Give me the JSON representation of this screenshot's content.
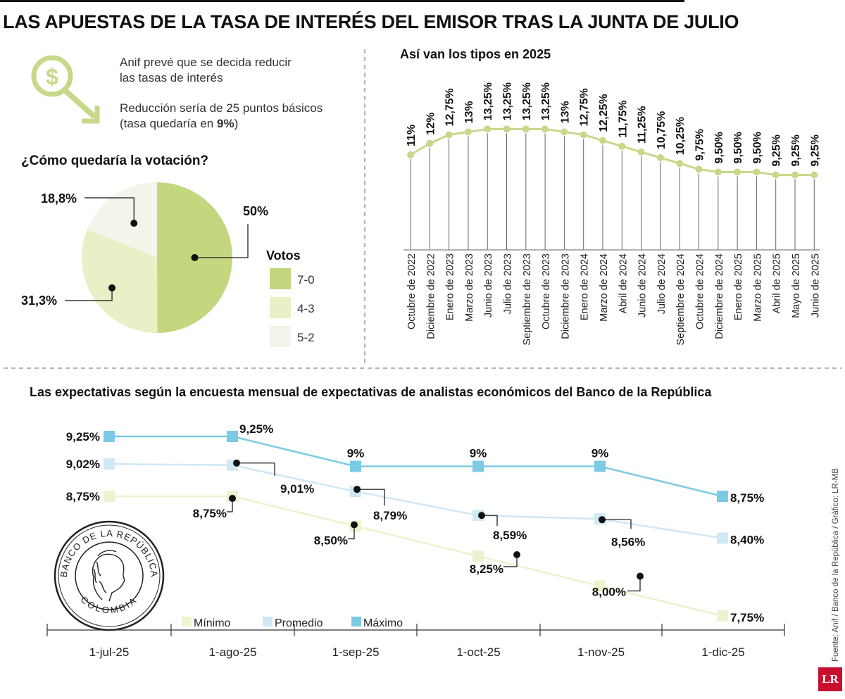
{
  "title": "LAS APUESTAS DE LA TASA DE INTERÉS DEL EMISOR TRAS LA JUNTA DE JULIO",
  "anif": {
    "line1": "Anif prevé que se decida reducir",
    "line2": "las tasas de interés",
    "line3": "Reducción sería de 25 puntos básicos",
    "line4_pre": "(tasa quedaría en ",
    "line4_bold": "9%",
    "line4_post": ")",
    "icon": "dollar-magnifier-down-arrow-icon"
  },
  "colors": {
    "pie_70": "#c3d77e",
    "pie_43": "#eaefc8",
    "pie_52": "#f1f5ea",
    "rates_line": "#c6d98a",
    "max": "#7ccae6",
    "avg": "#cfe8f3",
    "min": "#eef2ce"
  },
  "chart_data": [
    {
      "type": "pie",
      "title": "¿Cómo quedaría la votación?",
      "legend_title": "Votos",
      "slices": [
        {
          "label": "7-0",
          "value": 50,
          "display": "50%"
        },
        {
          "label": "4-3",
          "value": 31.3,
          "display": "31,3%"
        },
        {
          "label": "5-2",
          "value": 18.8,
          "display": "18,8%"
        }
      ]
    },
    {
      "type": "line",
      "title": "Así van los tipos en 2025",
      "categories": [
        "Octubre de 2022",
        "Diciembre de 2022",
        "Enero de 2023",
        "Marzo de 2023",
        "Junio de 2023",
        "Julio de 2023",
        "Septiembre de 2023",
        "Octubre de 2023",
        "Diciembre de 2023",
        "Enero de 2024",
        "Marzo de 2024",
        "Abril de 2024",
        "Junio de 2024",
        "Julio de 2024",
        "Septiembre de 2024",
        "Octubre de 2024",
        "Diciembre de 2024",
        "Enero de 2025",
        "Marzo de 2025",
        "Abril de 2025",
        "Mayo de 2025",
        "Junio  de 2025"
      ],
      "values": [
        11,
        12,
        12.75,
        13,
        13.25,
        13.25,
        13.25,
        13.25,
        13,
        12.75,
        12.25,
        11.75,
        11.25,
        10.75,
        10.25,
        9.75,
        9.5,
        9.5,
        9.5,
        9.25,
        9.25,
        9.25
      ],
      "labels": [
        "11%",
        "12%",
        "12,75%",
        "13%",
        "13,25%",
        "13,25%",
        "13,25%",
        "13,25%",
        "13%",
        "12,75%",
        "12,25%",
        "11,75%",
        "11,25%",
        "10,75%",
        "10,25%",
        "9,75%",
        "9,50%",
        "9,50%",
        "9,50%",
        "9,25%",
        "9,25%",
        "9,25%"
      ]
    },
    {
      "type": "line",
      "title": "Las expectativas según la encuesta mensual de expectativas de analistas económicos del Banco de la República",
      "x": [
        "1-jul-25",
        "1-ago-25",
        "1-sep-25",
        "1-oct-25",
        "1-nov-25",
        "1-dic-25"
      ],
      "series": [
        {
          "name": "Máximo",
          "values": [
            9.25,
            9.25,
            9.0,
            9.0,
            9.0,
            8.75
          ],
          "labels": [
            "9,25%",
            "9,25%",
            "9%",
            "9%",
            "9%",
            "8,75%"
          ]
        },
        {
          "name": "Promedio",
          "values": [
            9.02,
            9.01,
            8.79,
            8.59,
            8.56,
            8.4
          ],
          "labels": [
            "9,02%",
            "9,01%",
            "8,79%",
            "8,59%",
            "8,56%",
            "8,40%"
          ]
        },
        {
          "name": "Mínimo",
          "values": [
            8.75,
            8.75,
            8.5,
            8.25,
            8.0,
            7.75
          ],
          "labels": [
            "8,75%",
            "8,75%",
            "8,50%",
            "8,25%",
            "8,00%",
            "7,75%"
          ]
        }
      ],
      "legend": [
        "Mínimo",
        "Promedio",
        "Máximo"
      ]
    }
  ],
  "seal": {
    "top_text": "BANCO DE LA REPÚBLICA",
    "bottom_text": "COLOMBIA"
  },
  "source": "Fuente: Anif / Banco de la República / Gráfico: LR-MB",
  "brand": "LR"
}
